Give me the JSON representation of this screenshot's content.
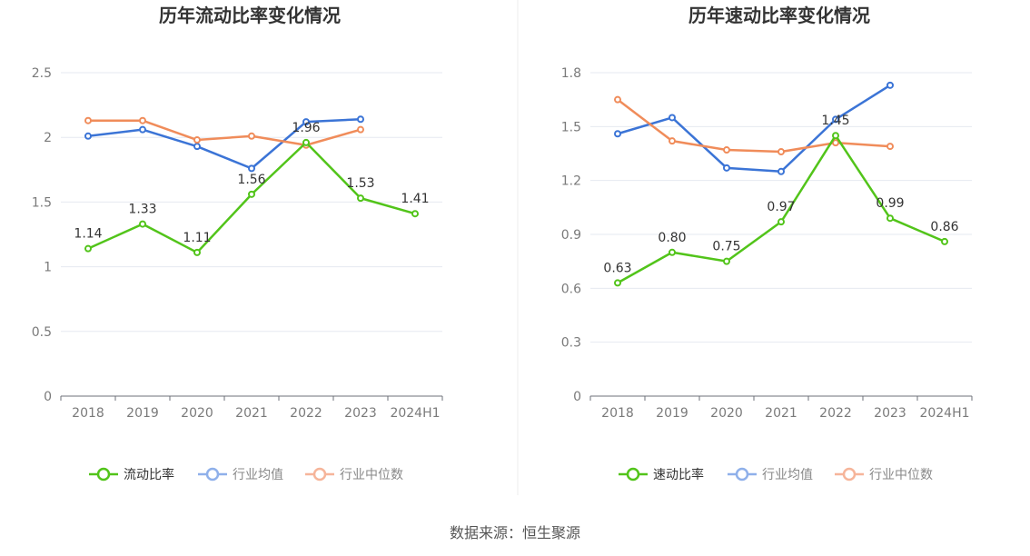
{
  "source_label": "数据来源：恒生聚源",
  "chart_data": [
    {
      "type": "line",
      "title": "历年流动比率变化情况",
      "categories": [
        "2018",
        "2019",
        "2020",
        "2021",
        "2022",
        "2023",
        "2024H1"
      ],
      "ylim": [
        0,
        2.5
      ],
      "yticks": [
        "0",
        "0.5",
        "1",
        "1.5",
        "2",
        "2.5"
      ],
      "grid": true,
      "legend_position": "bottom",
      "series": [
        {
          "name": "流动比率",
          "color": "#52c41a",
          "values": [
            1.14,
            1.33,
            1.11,
            1.56,
            1.96,
            1.53,
            1.41
          ],
          "labels": [
            "1.14",
            "1.33",
            "1.11",
            "1.56",
            "1.96",
            "1.53",
            "1.41"
          ]
        },
        {
          "name": "行业均值",
          "color": "#3b74d6",
          "values": [
            2.01,
            2.06,
            1.93,
            1.76,
            2.12,
            2.14,
            null
          ]
        },
        {
          "name": "行业中位数",
          "color": "#f08c5a",
          "values": [
            2.13,
            2.13,
            1.98,
            2.01,
            1.94,
            2.06,
            null
          ]
        }
      ]
    },
    {
      "type": "line",
      "title": "历年速动比率变化情况",
      "categories": [
        "2018",
        "2019",
        "2020",
        "2021",
        "2022",
        "2023",
        "2024H1"
      ],
      "ylim": [
        0,
        1.8
      ],
      "yticks": [
        "0",
        "0.3",
        "0.6",
        "0.9",
        "1.2",
        "1.5",
        "1.8"
      ],
      "grid": true,
      "legend_position": "bottom",
      "series": [
        {
          "name": "速动比率",
          "color": "#52c41a",
          "values": [
            0.63,
            0.8,
            0.75,
            0.97,
            1.45,
            0.99,
            0.86
          ],
          "labels": [
            "0.63",
            "0.80",
            "0.75",
            "0.97",
            "1.45",
            "0.99",
            "0.86"
          ]
        },
        {
          "name": "行业均值",
          "color": "#3b74d6",
          "values": [
            1.46,
            1.55,
            1.27,
            1.25,
            1.54,
            1.73,
            null
          ]
        },
        {
          "name": "行业中位数",
          "color": "#f08c5a",
          "values": [
            1.65,
            1.42,
            1.37,
            1.36,
            1.41,
            1.39,
            null
          ]
        }
      ]
    }
  ]
}
